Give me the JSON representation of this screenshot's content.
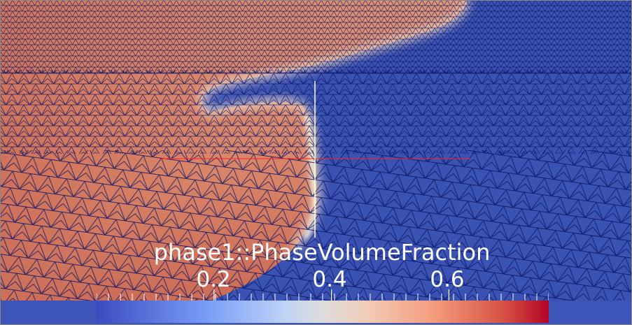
{
  "view": {
    "field_name": "phase1::PhaseVolumeFraction"
  },
  "colorbar": {
    "title": "phase1::PhaseVolumeFraction",
    "tick_labels": [
      "0.2",
      "0.4",
      "0.6"
    ],
    "tick_values": [
      0.2,
      0.4,
      0.6
    ],
    "range": [
      0.0,
      0.77
    ],
    "minor_tick_count": 38,
    "colormap": "cool-to-warm",
    "colors": {
      "low": "#3b4cc0",
      "mid": "#dddddd",
      "high": "#b40426"
    }
  },
  "scene": {
    "background_color": "#3b52b4",
    "mesh_line_color": "#0a1466",
    "liquid_color": "#d47e62",
    "gas_color": "#3a52b2",
    "axes": {
      "x_axis_color": "#ff2222",
      "y_axis_color": "#ffffcc"
    },
    "window_border_color": "#888888"
  }
}
